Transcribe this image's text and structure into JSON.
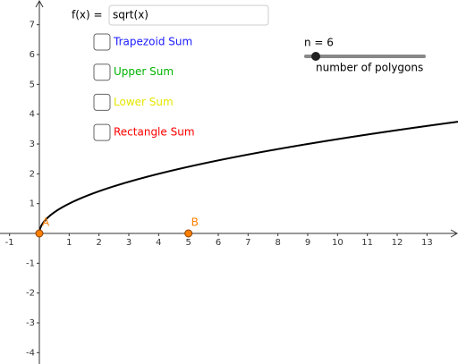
{
  "input": {
    "label": "f(x) =",
    "value": "sqrt(x)"
  },
  "checkboxes": [
    {
      "label": "Trapezoid Sum",
      "color": "#1a1aff"
    },
    {
      "label": "Upper Sum",
      "color": "#00b300"
    },
    {
      "label": "Lower Sum",
      "color": "#e6e600"
    },
    {
      "label": "Rectangle Sum",
      "color": "#ff0000"
    }
  ],
  "slider": {
    "label": "n = 6",
    "caption": "number of polygons"
  },
  "plot": {
    "xlim": [
      -1.32,
      14.04
    ],
    "ylim": [
      -4.38,
      7.83
    ],
    "xticks": [
      -1,
      1,
      2,
      3,
      4,
      5,
      6,
      7,
      8,
      9,
      10,
      11,
      12,
      13
    ],
    "yticks": [
      -4,
      -3,
      -2,
      -1,
      1,
      2,
      3,
      4,
      5,
      6,
      7
    ],
    "curve_color": "#000000",
    "points": [
      {
        "label": "A",
        "x": 0
      },
      {
        "label": "B",
        "x": 5
      }
    ],
    "point_color": "#ff7f00"
  }
}
